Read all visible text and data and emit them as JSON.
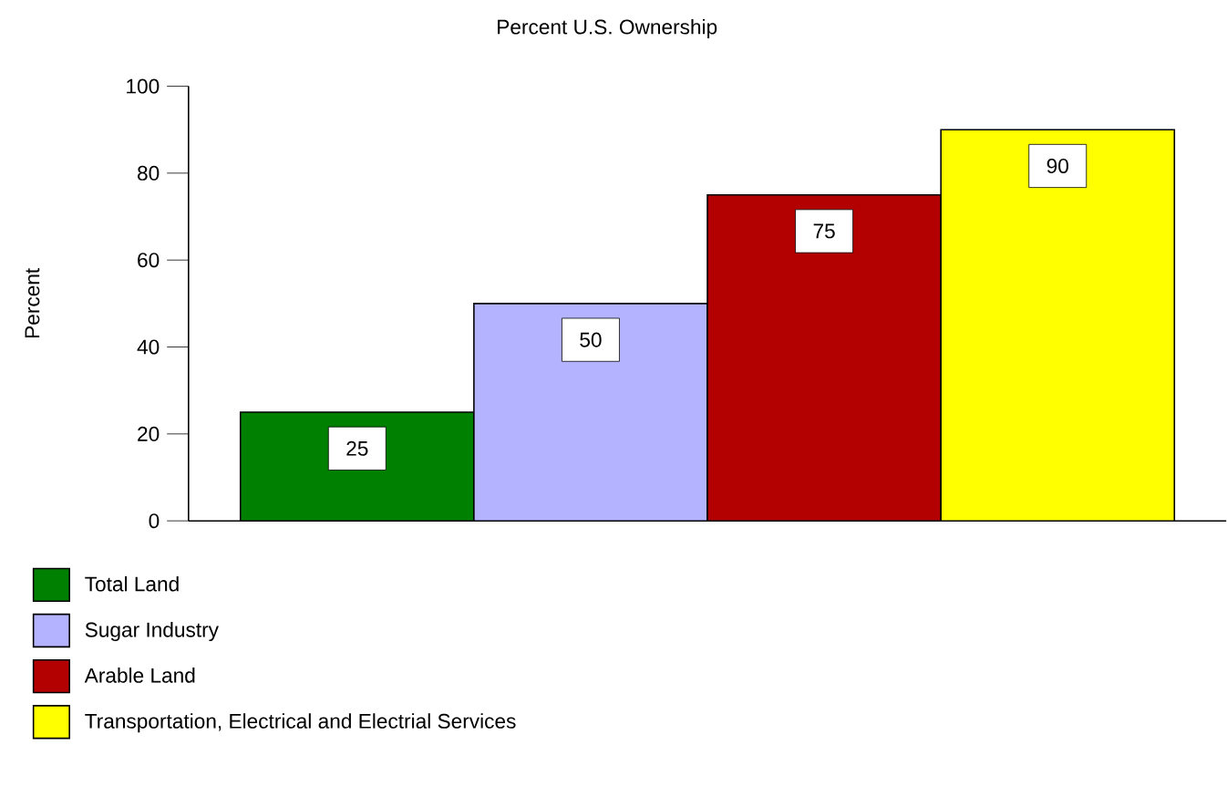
{
  "chart_data": {
    "type": "bar",
    "title": "Percent U.S. Ownership",
    "ylabel": "Percent",
    "categories": [
      null
    ],
    "series": [
      {
        "name": "Total Land",
        "color": "#008000",
        "values": [
          25
        ]
      },
      {
        "name": "Sugar Industry",
        "color": "#b3b3ff",
        "values": [
          50
        ]
      },
      {
        "name": "Arable Land",
        "color": "#b30000",
        "values": [
          75
        ]
      },
      {
        "name": "Transportation, Electrical and Electrial Services",
        "color": "#ffff00",
        "values": [
          90
        ]
      }
    ],
    "ylim": [
      0,
      100
    ],
    "yticks": [
      0,
      20,
      40,
      60,
      80,
      100
    ],
    "data_labels": true,
    "legend": "bottom left"
  }
}
